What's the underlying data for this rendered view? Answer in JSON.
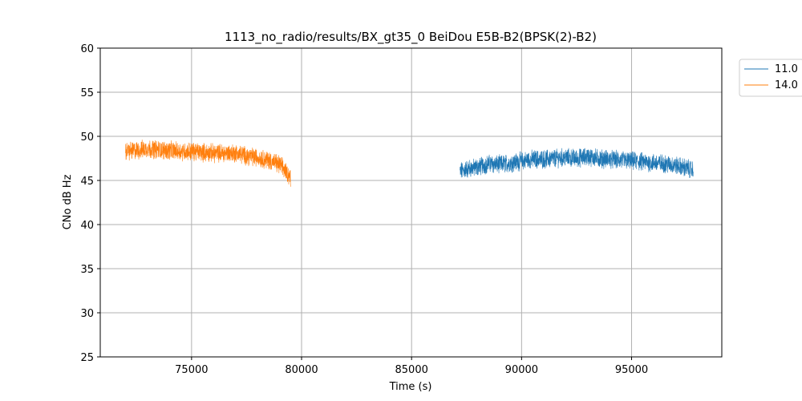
{
  "chart_data": {
    "type": "line",
    "title": "1113_no_radio/results/BX_gt35_0 BeiDou E5B-B2(BPSK(2)-B2)",
    "xlabel": "Time (s)",
    "ylabel": "CNo dB Hz",
    "xlim": [
      70850,
      99100
    ],
    "ylim": [
      25,
      60
    ],
    "xticks": [
      75000,
      80000,
      85000,
      90000,
      95000
    ],
    "yticks": [
      25,
      30,
      35,
      40,
      45,
      50,
      55,
      60
    ],
    "grid": true,
    "legend_position": "top-right, outside plot",
    "series": [
      {
        "name": "11.0",
        "color": "#1f77b4",
        "x_range": [
          87200,
          97800
        ],
        "x": [
          87200,
          87500,
          88000,
          88500,
          89000,
          89500,
          90000,
          90500,
          91000,
          91500,
          92000,
          92500,
          93000,
          93500,
          94000,
          94500,
          95000,
          95500,
          96000,
          96500,
          97000,
          97500,
          97800
        ],
        "y": [
          46.0,
          46.3,
          46.5,
          46.9,
          46.8,
          47.0,
          47.2,
          47.4,
          47.4,
          47.5,
          47.6,
          47.5,
          47.7,
          47.5,
          47.4,
          47.3,
          47.2,
          47.1,
          47.0,
          46.9,
          46.7,
          46.4,
          46.2
        ],
        "noise_band": 1.8
      },
      {
        "name": "14.0",
        "color": "#ff7f0e",
        "x_range": [
          72000,
          79500
        ],
        "x": [
          72000,
          72500,
          73000,
          73500,
          74000,
          74500,
          75000,
          75500,
          76000,
          76500,
          77000,
          77500,
          78000,
          78500,
          79000,
          79300,
          79500
        ],
        "y": [
          48.3,
          48.4,
          48.6,
          48.5,
          48.4,
          48.3,
          48.3,
          48.2,
          48.1,
          48.1,
          48.1,
          47.8,
          47.6,
          47.3,
          46.8,
          46.0,
          45.3
        ],
        "noise_band": 1.8
      }
    ]
  }
}
